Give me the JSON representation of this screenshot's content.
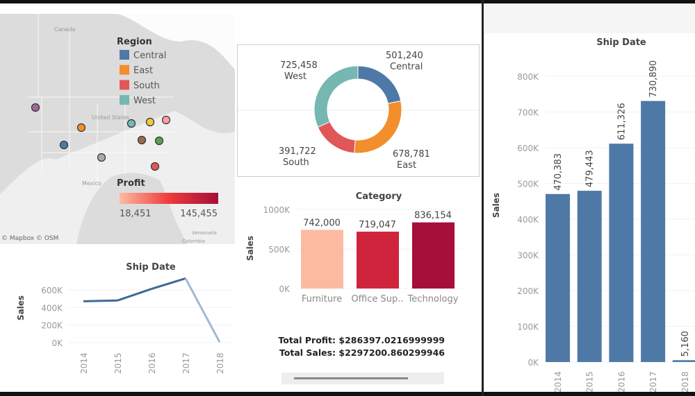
{
  "map": {
    "labels": {
      "canada": "Canada",
      "us": "United States",
      "mexico": "Mexico",
      "venezuela": "Venezuela",
      "colombia": "Colombia"
    },
    "attribution": "© Mapbox © OSM",
    "region_legend": {
      "title": "Region",
      "items": [
        {
          "label": "Central",
          "color": "#4e79a7"
        },
        {
          "label": "East",
          "color": "#f28e2b"
        },
        {
          "label": "South",
          "color": "#e15759"
        },
        {
          "label": "West",
          "color": "#76b7b2"
        }
      ]
    },
    "profit_legend": {
      "title": "Profit",
      "min": "18,451",
      "max": "145,455",
      "color_low": "#fcbba1",
      "color_high": "#a50f3a"
    },
    "markers": [
      "#a0679a",
      "#f28e2b",
      "#4e79a7",
      "#aaaaaa",
      "#76b7b2",
      "#9c6b4e",
      "#edc948",
      "#59a14f",
      "#ff9da7",
      "#e15759"
    ]
  },
  "chart_data": [
    {
      "type": "pie",
      "variant": "donut",
      "slices": [
        {
          "label": "Central",
          "value": 501240,
          "display": "501,240",
          "color": "#4e79a7"
        },
        {
          "label": "East",
          "value": 678781,
          "display": "678,781",
          "color": "#f28e2b"
        },
        {
          "label": "South",
          "value": 391722,
          "display": "391,722",
          "color": "#e15759"
        },
        {
          "label": "West",
          "value": 725458,
          "display": "725,458",
          "color": "#76b7b2"
        }
      ]
    },
    {
      "type": "bar",
      "title": "Category",
      "ylabel": "Sales",
      "categories": [
        "Furniture",
        "Office Sup..",
        "Technology"
      ],
      "values": [
        742000,
        719047,
        836154
      ],
      "labels": [
        "742,000",
        "719,047",
        "836,154"
      ],
      "colors": [
        "#fcbba1",
        "#d0243c",
        "#a50f3a"
      ],
      "yticks": [
        "0K",
        "500K",
        "1000K"
      ],
      "ylim": [
        0,
        1000000
      ]
    },
    {
      "type": "line",
      "title": "Ship Date",
      "ylabel": "Sales",
      "categories": [
        "2014",
        "2015",
        "2016",
        "2017",
        "2018"
      ],
      "values": [
        470383,
        479443,
        611326,
        730890,
        5160
      ],
      "yticks": [
        "0K",
        "200K",
        "400K",
        "600K"
      ],
      "ylim": [
        0,
        600000
      ],
      "color": "#4e79a7"
    },
    {
      "type": "bar",
      "title": "Ship Date",
      "ylabel": "Sales",
      "categories": [
        "2014",
        "2015",
        "2016",
        "2017",
        "2018"
      ],
      "values": [
        470383,
        479443,
        611326,
        730890,
        5160
      ],
      "labels": [
        "470,383",
        "479,443",
        "611,326",
        "730,890",
        "5,160"
      ],
      "yticks": [
        "0K",
        "100K",
        "200K",
        "300K",
        "400K",
        "500K",
        "600K",
        "700K",
        "800K"
      ],
      "ylim": [
        0,
        800000
      ],
      "color": "#4e79a7"
    }
  ],
  "totals": {
    "profit": "Total Profit: $286397.0216999999",
    "sales": "Total Sales: $2297200.860299946"
  }
}
